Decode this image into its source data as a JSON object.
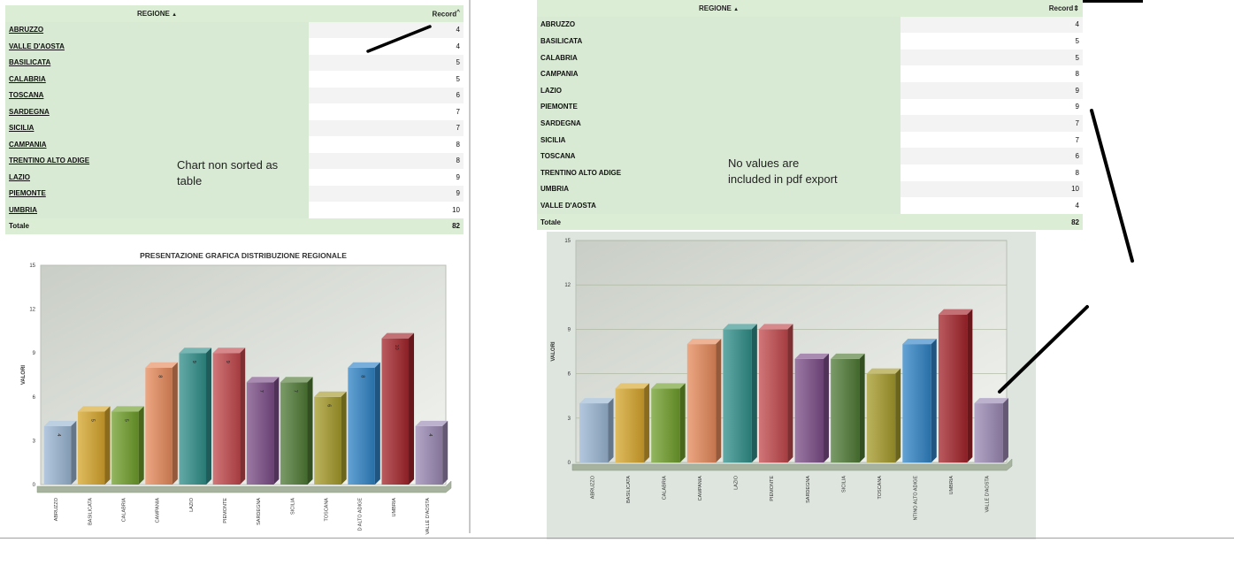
{
  "left": {
    "table": {
      "col_region": "REGIONE",
      "col_region_sort": "▲",
      "col_record": "Record",
      "col_record_sort": "^",
      "rows": [
        {
          "region": "ABRUZZO",
          "value": "4"
        },
        {
          "region": "VALLE D'AOSTA",
          "value": "4"
        },
        {
          "region": "BASILICATA",
          "value": "5"
        },
        {
          "region": "CALABRIA",
          "value": "5"
        },
        {
          "region": "TOSCANA",
          "value": "6"
        },
        {
          "region": "SARDEGNA",
          "value": "7"
        },
        {
          "region": "SICILIA",
          "value": "7"
        },
        {
          "region": "CAMPANIA",
          "value": "8"
        },
        {
          "region": "TRENTINO ALTO ADIGE",
          "value": "8"
        },
        {
          "region": "LAZIO",
          "value": "9"
        },
        {
          "region": "PIEMONTE",
          "value": "9"
        },
        {
          "region": "UMBRIA",
          "value": "10"
        }
      ],
      "total_label": "Totale",
      "total_value": "82"
    },
    "annotation_line1": "Chart non sorted as",
    "annotation_line2": "table"
  },
  "right": {
    "table": {
      "col_region": "REGIONE",
      "col_region_sort": "▲",
      "col_record": "Record",
      "col_record_sort": "⇕",
      "rows": [
        {
          "region": "ABRUZZO",
          "value": "4"
        },
        {
          "region": "BASILICATA",
          "value": "5"
        },
        {
          "region": "CALABRIA",
          "value": "5"
        },
        {
          "region": "CAMPANIA",
          "value": "8"
        },
        {
          "region": "LAZIO",
          "value": "9"
        },
        {
          "region": "PIEMONTE",
          "value": "9"
        },
        {
          "region": "SARDEGNA",
          "value": "7"
        },
        {
          "region": "SICILIA",
          "value": "7"
        },
        {
          "region": "TOSCANA",
          "value": "6"
        },
        {
          "region": "TRENTINO ALTO ADIGE",
          "value": "8"
        },
        {
          "region": "UMBRIA",
          "value": "10"
        },
        {
          "region": "VALLE D'AOSTA",
          "value": "4"
        }
      ],
      "total_label": "Totale",
      "total_value": "82"
    },
    "annotation_line1": "No values are",
    "annotation_line2": "included in pdf export"
  },
  "colors": {
    "row_green": "#d8ead3",
    "header_green": "#dcedd6",
    "bars": [
      "#9ab6d3",
      "#d6a52b",
      "#6f9e2a",
      "#e58a5a",
      "#2f8e8a",
      "#c2484c",
      "#7b4d87",
      "#4f7a35",
      "#a59a2a",
      "#2f83c5",
      "#a3242b",
      "#9a88b3"
    ]
  },
  "chart_data": [
    {
      "type": "bar",
      "title": "PRESENTAZIONE GRAFICA DISTRIBUZIONE REGIONALE",
      "xlabel": "",
      "ylabel": "VALORI",
      "ylim": [
        0,
        15
      ],
      "yticks": [
        0,
        3,
        6,
        9,
        12,
        15
      ],
      "categories": [
        "ABRUZZO",
        "BASILICATA",
        "CALABRIA",
        "CAMPANIA",
        "LAZIO",
        "PIEMONTE",
        "SARDEGNA",
        "SICILIA",
        "TOSCANA",
        "D ALTO ADIGE",
        "UMBRIA",
        "VALLE D'AOSTA"
      ],
      "values": [
        4,
        5,
        5,
        8,
        9,
        9,
        7,
        7,
        6,
        8,
        10,
        4
      ],
      "show_value_labels": true
    },
    {
      "type": "bar",
      "title": "",
      "xlabel": "",
      "ylabel": "VALORI",
      "ylim": [
        0,
        15
      ],
      "yticks": [
        0,
        3,
        6,
        9,
        12,
        15
      ],
      "categories": [
        "ABRUZZO",
        "BASILICATA",
        "CALABRIA",
        "CAMPANIA",
        "LAZIO",
        "PIEMONTE",
        "SARDEGNA",
        "SICILIA",
        "TOSCANA",
        "NTINO ALTO ADIGE",
        "UMBRIA",
        "VALLE D'AOSTA"
      ],
      "values": [
        4,
        5,
        5,
        8,
        9,
        9,
        7,
        7,
        6,
        8,
        10,
        4
      ],
      "show_value_labels": false
    }
  ]
}
